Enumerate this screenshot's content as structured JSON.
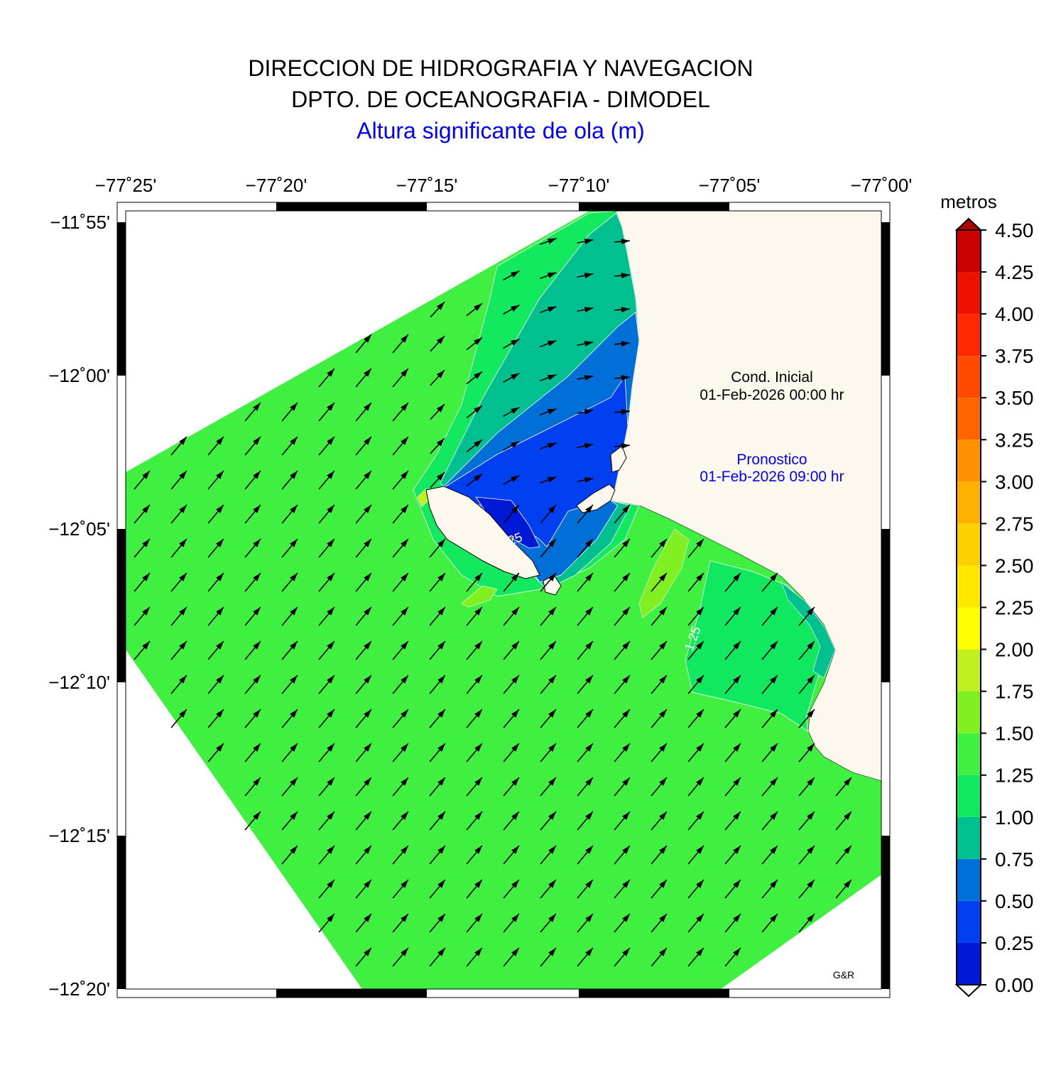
{
  "header": {
    "line1": "DIRECCION DE HIDROGRAFIA Y NAVEGACION",
    "line2": "DPTO. DE OCEANOGRAFIA - DIMODEL",
    "line3": "Altura significante de ola (m)"
  },
  "map": {
    "lon_ticks": [
      "−77˚25'",
      "−77˚20'",
      "−77˚15'",
      "−77˚10'",
      "−77˚05'",
      "−77˚00'"
    ],
    "lat_ticks": [
      "−11˚55'",
      "−12˚00'",
      "−12˚05'",
      "−12˚10'",
      "−12˚15'",
      "−12˚20'"
    ],
    "cond_inicial_label": "Cond. Inicial",
    "cond_inicial_date": "01-Feb-2026 00:00 hr",
    "pronostico_label": "Pronostico",
    "pronostico_date": "01-Feb-2026 09:00 hr",
    "credit": "G&R",
    "contour_labels": [
      "25",
      "1.25"
    ]
  },
  "colorbar": {
    "unit_label": "metros",
    "ticks": [
      "4.50",
      "4.25",
      "4.00",
      "3.75",
      "3.50",
      "3.25",
      "3.00",
      "2.75",
      "2.50",
      "2.25",
      "2.00",
      "1.75",
      "1.50",
      "1.25",
      "1.00",
      "0.75",
      "0.50",
      "0.25",
      "0.00"
    ],
    "colors": [
      "#0019d6",
      "#0040f0",
      "#0070d8",
      "#00c090",
      "#10e860",
      "#40f040",
      "#80f020",
      "#c0f020",
      "#ffff00",
      "#ffe800",
      "#ffd000",
      "#ffb000",
      "#ff9000",
      "#ff6400",
      "#ff4a00",
      "#ff2800",
      "#ee1000",
      "#cc0000",
      "#b00000"
    ]
  },
  "colors": {
    "land": "#fdf8ee",
    "sea_main": "#40f040",
    "arrow": "#000000"
  }
}
